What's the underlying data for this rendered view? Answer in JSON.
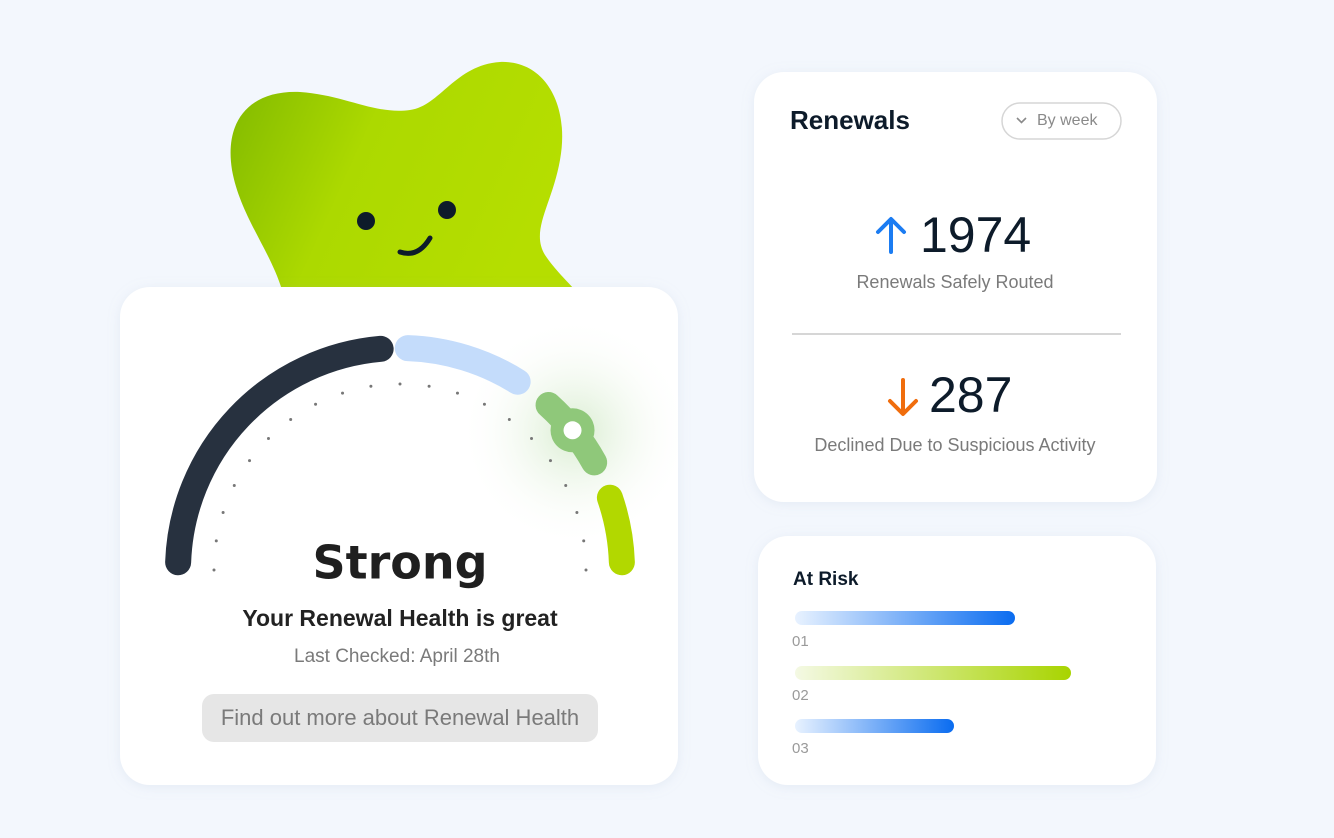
{
  "gauge_card": {
    "status": "Strong",
    "message": "Your Renewal Health is great",
    "last_checked": "Last Checked: April 28th",
    "button": "Find out more about Renewal Health"
  },
  "renewals_card": {
    "title": "Renewals",
    "filter": "By week",
    "stats": [
      {
        "value": 1974,
        "label": "Renewals Safely Routed"
      },
      {
        "value": 287,
        "label": "Declined Due to Suspicious Activity"
      }
    ]
  },
  "at_risk_card": {
    "title": "At Risk",
    "rows": [
      "01",
      "02",
      "03"
    ]
  }
}
